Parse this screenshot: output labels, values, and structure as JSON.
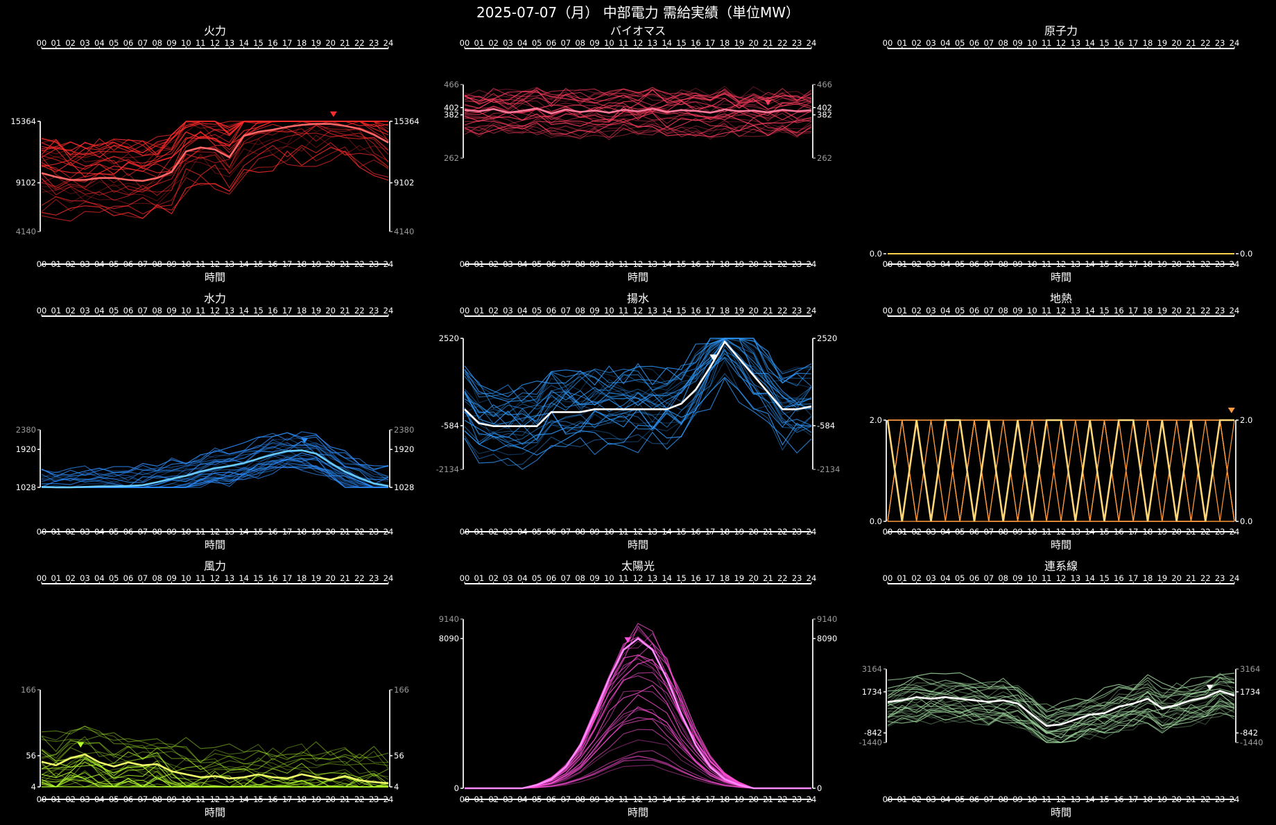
{
  "title": "2025-07-07（月） 中部電力 需給実績（単位MW）",
  "hours": [
    "00",
    "01",
    "02",
    "03",
    "04",
    "05",
    "06",
    "07",
    "08",
    "09",
    "10",
    "11",
    "12",
    "13",
    "14",
    "15",
    "16",
    "17",
    "18",
    "19",
    "20",
    "21",
    "22",
    "23",
    "24"
  ],
  "xlabel": "時間",
  "panels": [
    {
      "name": "火力",
      "color": "#ff2b2b",
      "ticks": [
        {
          "v": 15364,
          "hl": true
        },
        {
          "v": 9102,
          "hl": true
        },
        {
          "v": 4140,
          "hl": false
        }
      ],
      "ymin": 4140,
      "ymax": 15364,
      "today": [
        10100,
        9700,
        9400,
        9400,
        9600,
        9600,
        9400,
        9300,
        9600,
        10200,
        12300,
        12700,
        12500,
        11700,
        13900,
        14300,
        14500,
        14800,
        15000,
        15100,
        15100,
        14900,
        14600,
        14000,
        13200
      ],
      "marker_hour": 20.2
    },
    {
      "name": "バイオマス",
      "color": "#ff3d5f",
      "ticks": [
        {
          "v": 466,
          "hl": false
        },
        {
          "v": 402,
          "hl": true
        },
        {
          "v": 382,
          "hl": true
        },
        {
          "v": 262,
          "hl": false
        }
      ],
      "ymin": 262,
      "ymax": 466,
      "today": [
        395,
        392,
        398,
        388,
        393,
        400,
        386,
        397,
        390,
        394,
        388,
        396,
        392,
        399,
        390,
        395,
        393,
        388,
        397,
        392,
        394,
        389,
        396,
        392,
        395
      ],
      "marker_hour": 21.0
    },
    {
      "name": "原子力",
      "color": "#ffd24a",
      "ticks": [
        {
          "v": 0.0,
          "hl": true,
          "fmt": "0.0"
        }
      ],
      "ymin": 0,
      "ymax": 1,
      "flat": true,
      "today": [
        0,
        0,
        0,
        0,
        0,
        0,
        0,
        0,
        0,
        0,
        0,
        0,
        0,
        0,
        0,
        0,
        0,
        0,
        0,
        0,
        0,
        0,
        0,
        0,
        0
      ]
    },
    {
      "name": "水力",
      "color": "#2d8fff",
      "ticks": [
        {
          "v": 2380,
          "hl": false
        },
        {
          "v": 1920,
          "hl": true
        },
        {
          "v": 1028,
          "hl": true
        }
      ],
      "ymin": 1028,
      "ymax": 2380,
      "today": [
        1040,
        1030,
        1030,
        1040,
        1050,
        1050,
        1060,
        1080,
        1150,
        1230,
        1300,
        1400,
        1480,
        1530,
        1600,
        1700,
        1800,
        1880,
        1900,
        1820,
        1600,
        1400,
        1250,
        1120,
        1060
      ],
      "marker_hour": 18.2
    },
    {
      "name": "揚水",
      "color": "#2f9bff",
      "ticks": [
        {
          "v": 2520,
          "hl": true
        },
        {
          "v": -584,
          "hl": true
        },
        {
          "v": -2134,
          "hl": false
        }
      ],
      "ymin": -2134,
      "ymax": 2520,
      "today": [
        0,
        -500,
        -600,
        -600,
        -600,
        -600,
        -100,
        -100,
        -100,
        0,
        0,
        0,
        0,
        0,
        0,
        200,
        700,
        1500,
        2400,
        1800,
        1200,
        600,
        0,
        0,
        100
      ],
      "marker_hour": 17.2
    },
    {
      "name": "地熱",
      "color": "#ff9a3c",
      "ticks": [
        {
          "v": 2.0,
          "hl": true,
          "fmt": "2.0"
        },
        {
          "v": 0.0,
          "hl": true,
          "fmt": "0.0"
        }
      ],
      "ymin": 0,
      "ymax": 2,
      "square": true,
      "today": [
        2,
        0,
        2,
        0,
        2,
        2,
        0,
        2,
        0,
        2,
        0,
        2,
        2,
        0,
        2,
        0,
        2,
        2,
        0,
        2,
        0,
        2,
        0,
        2,
        2
      ],
      "marker_hour": 23.8
    },
    {
      "name": "風力",
      "color": "#b4ff2c",
      "ticks": [
        {
          "v": 166,
          "hl": false
        },
        {
          "v": 56,
          "hl": true
        },
        {
          "v": 4,
          "hl": true
        }
      ],
      "ymin": 4,
      "ymax": 166,
      "today": [
        46,
        40,
        52,
        58,
        45,
        38,
        45,
        40,
        42,
        30,
        25,
        20,
        22,
        18,
        20,
        25,
        20,
        18,
        25,
        20,
        16,
        22,
        15,
        12,
        10
      ],
      "marker_hour": 2.7
    },
    {
      "name": "太陽光",
      "color": "#ff4fd8",
      "ticks": [
        {
          "v": 9140,
          "hl": false
        },
        {
          "v": 8090,
          "hl": true
        },
        {
          "v": 0,
          "hl": true
        }
      ],
      "ymin": 0,
      "ymax": 9140,
      "solar": true,
      "peak": 8090,
      "marker_hour": 11.3
    },
    {
      "name": "連系線",
      "color": "#9fd89f",
      "ticks": [
        {
          "v": 3164,
          "hl": false
        },
        {
          "v": 1734,
          "hl": true
        },
        {
          "v": -842,
          "hl": true
        },
        {
          "v": -1440,
          "hl": false
        }
      ],
      "ymin": -1440,
      "ymax": 3164,
      "today": [
        1100,
        1200,
        1400,
        1300,
        1400,
        1300,
        1200,
        1100,
        1200,
        1000,
        300,
        -400,
        -300,
        0,
        300,
        400,
        800,
        1000,
        1300,
        700,
        900,
        1200,
        1400,
        1800,
        1500
      ],
      "marker_hour": 22.3
    }
  ]
}
